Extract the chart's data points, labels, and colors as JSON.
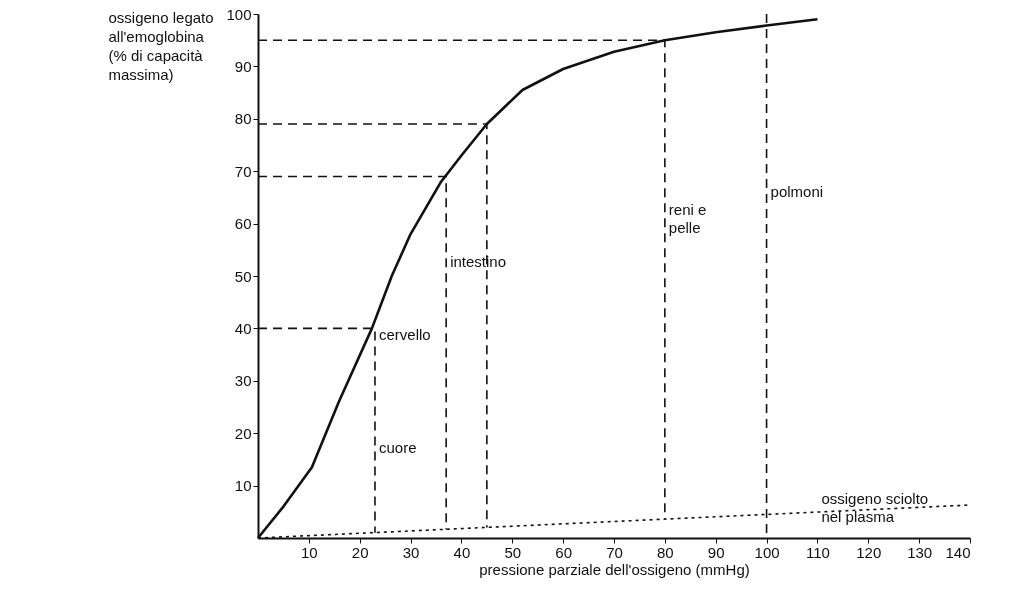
{
  "chart_data": {
    "type": "line",
    "xlabel": "pressione parziale dell'ossigeno (mmHg)",
    "ylabel": "ossigeno legato\nall'emoglobina\n(% di capacità\nmassima)",
    "xlim": [
      0,
      140
    ],
    "ylim": [
      0,
      100
    ],
    "xticks": [
      10,
      20,
      30,
      40,
      50,
      60,
      70,
      80,
      90,
      100,
      110,
      120,
      130,
      140
    ],
    "yticks": [
      10,
      20,
      30,
      40,
      50,
      60,
      70,
      80,
      90,
      100
    ],
    "grid": false,
    "marker": "none",
    "series": [
      {
        "color": "#111111",
        "line_style": "solid",
        "x": [
          0,
          5,
          10.6,
          15.9,
          22.4,
          26.3,
          30,
          36,
          40,
          45,
          52,
          60,
          70,
          80,
          90,
          100,
          110
        ],
        "values": [
          0,
          6,
          13.5,
          26,
          40,
          50,
          58,
          68,
          73,
          79,
          85.5,
          89.5,
          92.8,
          95,
          96.5,
          97.8,
          99
        ]
      },
      {
        "color": "#111111",
        "line_style": "dotted",
        "x": [
          0,
          140
        ],
        "values": [
          0,
          6.3
        ]
      },
      {
        "color": "#111111",
        "line_style": "dashed",
        "x": [
          0,
          23,
          23
        ],
        "values": [
          40,
          40,
          1
        ]
      },
      {
        "color": "#111111",
        "line_style": "dashed",
        "x": [
          0,
          37,
          37
        ],
        "values": [
          69,
          69,
          1.6
        ]
      },
      {
        "color": "#111111",
        "line_style": "dashed",
        "x": [
          0,
          45,
          45
        ],
        "values": [
          79,
          79,
          2
        ]
      },
      {
        "color": "#111111",
        "line_style": "dashed",
        "x": [
          0,
          80,
          80
        ],
        "values": [
          95,
          95,
          3.6
        ]
      }
    ],
    "ref_lines": [
      {
        "axis": "x",
        "value": 100,
        "label": "polmoni",
        "color": "#111111",
        "line_style": "dashed"
      }
    ],
    "annotations": [
      {
        "text": "cuore",
        "x": 23,
        "y": 14.5
      },
      {
        "text": "cervello",
        "x": 23,
        "y": 36
      },
      {
        "text": "intestino",
        "x": 37,
        "y": 50
      },
      {
        "text": "reni e\npelle",
        "x": 80,
        "y": 60
      },
      {
        "text": "ossigeno sciolto\nnel plasma",
        "x": 110,
        "y": 4.7
      }
    ]
  }
}
